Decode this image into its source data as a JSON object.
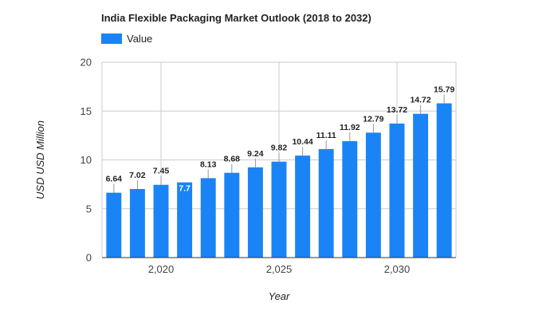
{
  "chart_data": {
    "type": "bar",
    "title": "India Flexible Packaging Market Outlook (2018 to 2032)",
    "xlabel": "Year",
    "ylabel": "USD USD Million",
    "legend": {
      "label": "Value",
      "placement": "top-left"
    },
    "color": "#1a84f7",
    "x": [
      2018,
      2019,
      2020,
      2021,
      2022,
      2023,
      2024,
      2025,
      2026,
      2027,
      2028,
      2029,
      2030,
      2031,
      2032
    ],
    "values": [
      6.64,
      7.02,
      7.45,
      7.7,
      8.13,
      8.68,
      9.24,
      9.82,
      10.44,
      11.11,
      11.92,
      12.79,
      13.72,
      14.72,
      15.79
    ],
    "data_labels": [
      "6.64",
      "7.02",
      "7.45",
      "7.7",
      "8.13",
      "8.68",
      "9.24",
      "9.82",
      "10.44",
      "11.11",
      "11.92",
      "12.79",
      "13.72",
      "14.72",
      "15.79"
    ],
    "x_ticks": [
      2020,
      2025,
      2030
    ],
    "x_tick_labels": [
      "2,020",
      "2,025",
      "2,030"
    ],
    "y_ticks": [
      0,
      5,
      10,
      15,
      20
    ],
    "y_tick_labels": [
      "0",
      "5",
      "10",
      "15",
      "20"
    ],
    "ylim": [
      0,
      20
    ],
    "grid": true
  }
}
